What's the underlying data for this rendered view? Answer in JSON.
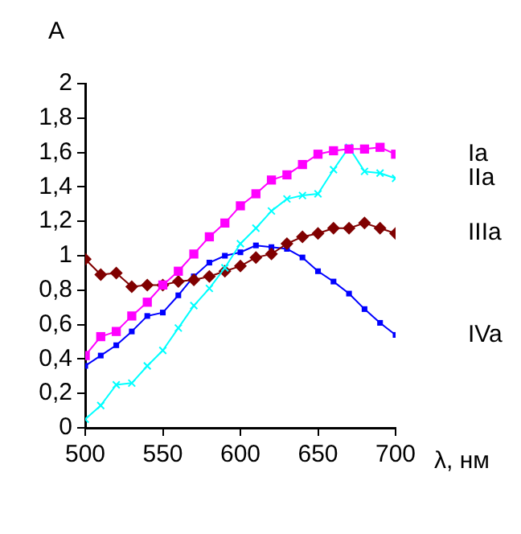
{
  "chart_data": {
    "type": "line",
    "xlabel": "λ, нм",
    "ylabel": "A",
    "x": [
      500,
      510,
      520,
      530,
      540,
      550,
      560,
      570,
      580,
      590,
      600,
      610,
      620,
      630,
      640,
      650,
      660,
      670,
      680,
      690,
      700
    ],
    "series": [
      {
        "name": "Ia",
        "color": "#ff00ff",
        "marker": "square",
        "values": [
          0.42,
          0.53,
          0.56,
          0.65,
          0.73,
          0.83,
          0.91,
          1.01,
          1.11,
          1.19,
          1.29,
          1.36,
          1.44,
          1.47,
          1.53,
          1.59,
          1.61,
          1.62,
          1.62,
          1.63,
          1.59
        ]
      },
      {
        "name": "IIa",
        "color": "#00ffff",
        "marker": "cross",
        "values": [
          0.05,
          0.13,
          0.25,
          0.26,
          0.36,
          0.45,
          0.58,
          0.71,
          0.81,
          0.93,
          1.07,
          1.16,
          1.26,
          1.33,
          1.35,
          1.36,
          1.5,
          1.63,
          1.49,
          1.48,
          1.45
        ]
      },
      {
        "name": "IIIa",
        "color": "#800000",
        "marker": "diamond",
        "values": [
          0.98,
          0.89,
          0.9,
          0.82,
          0.83,
          0.83,
          0.85,
          0.86,
          0.88,
          0.91,
          0.94,
          0.99,
          1.01,
          1.07,
          1.11,
          1.13,
          1.16,
          1.16,
          1.19,
          1.16,
          1.13
        ]
      },
      {
        "name": "IVa",
        "color": "#0000ff",
        "marker": "square",
        "values": [
          0.36,
          0.42,
          0.48,
          0.56,
          0.65,
          0.67,
          0.77,
          0.88,
          0.96,
          1.0,
          1.02,
          1.06,
          1.05,
          1.04,
          0.99,
          0.91,
          0.85,
          0.78,
          0.69,
          0.61,
          0.54
        ]
      }
    ],
    "xlim": [
      500,
      700
    ],
    "xticks": [
      500,
      550,
      600,
      650,
      700
    ],
    "ylim": [
      0,
      2
    ],
    "yticks": [
      0,
      {
        "value": 0.2,
        "label": "0,2"
      },
      {
        "value": 0.4,
        "label": "0,4"
      },
      {
        "value": 0.6,
        "label": "0,6"
      },
      {
        "value": 0.8,
        "label": "0,8"
      },
      1,
      {
        "value": 1.2,
        "label": "1,2"
      },
      {
        "value": 1.4,
        "label": "1,4"
      },
      {
        "value": 1.6,
        "label": "1,6"
      },
      {
        "value": 1.8,
        "label": "1,8"
      },
      2
    ],
    "grid": false,
    "legend": false
  }
}
